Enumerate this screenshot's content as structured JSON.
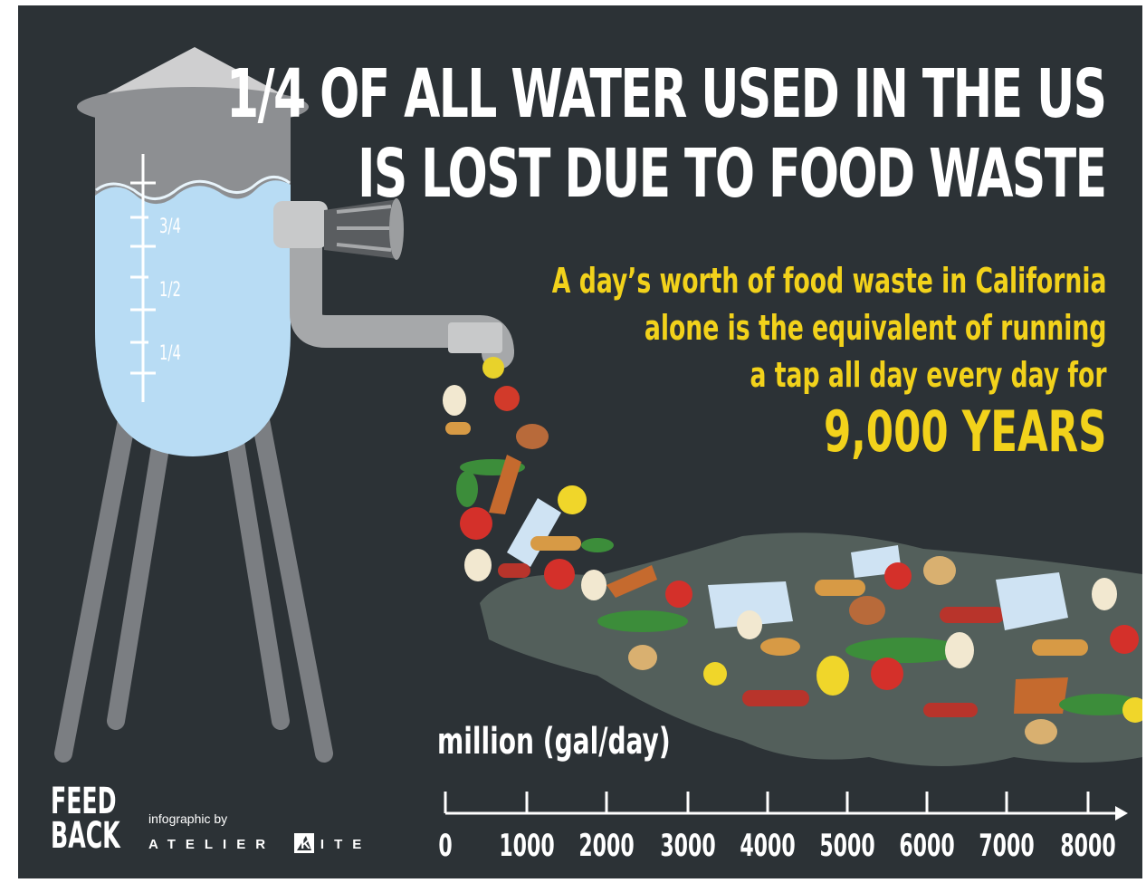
{
  "headline": {
    "line1": "1/4 OF ALL WATER USED IN THE US",
    "line2": "IS LOST DUE TO FOOD WASTE"
  },
  "subtext": {
    "line1": "A day’s worth of food waste in California",
    "line2": "alone is the equivalent of running",
    "line3": "a tap all day every day for",
    "emphasis": "9,000 YEARS"
  },
  "tank_scale": {
    "mark_3_4": "3/4",
    "mark_1_2": "1/2",
    "mark_1_4": "1/4"
  },
  "scale_bar": {
    "unit_label": "million (gal/day)",
    "ticks": [
      "0",
      "1000",
      "2000",
      "3000",
      "4000",
      "5000",
      "6000",
      "7000",
      "8000"
    ]
  },
  "branding": {
    "feedback_line1": "FEED",
    "feedback_line2": "BACK",
    "credit": "infographic by",
    "studio_left": "ATELIER",
    "studio_right": "KITE"
  },
  "colors": {
    "background": "#2c3236",
    "water": "#b8dcf4",
    "tank_metal": "#8d8f92",
    "headline": "#ffffff",
    "accent_yellow": "#f2d21b"
  }
}
